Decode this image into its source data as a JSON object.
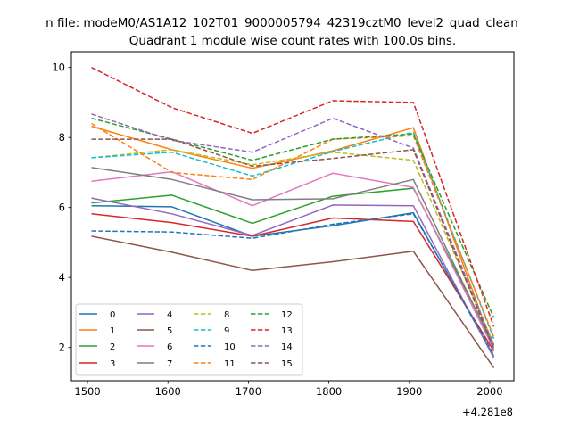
{
  "chart_data": {
    "type": "line",
    "suptitle": "n file: modeM0/AS1A12_102T01_9000005794_42319cztM0_level2_quad_clean",
    "title": "Quadrant 1 module wise count rates with 100.0s bins.",
    "xlabel": "",
    "ylabel": "",
    "x": [
      1505,
      1605,
      1705,
      1805,
      1905,
      2005
    ],
    "xticks": [
      1500,
      1600,
      1700,
      1800,
      1900,
      2000
    ],
    "xtick_labels": [
      "1500",
      "1600",
      "1700",
      "1800",
      "1900",
      "2000"
    ],
    "x_offset_label": "+4.281e8",
    "xlim": [
      1480,
      2030
    ],
    "yticks": [
      2,
      4,
      6,
      8,
      10
    ],
    "ytick_labels": [
      "2",
      "4",
      "6",
      "8",
      "10"
    ],
    "ylim": [
      1.05,
      10.45
    ],
    "grid": false,
    "legend_position": "lower-left",
    "series": [
      {
        "name": "0",
        "color": "#1f77b4",
        "style": "solid",
        "values": [
          6.05,
          6.02,
          5.18,
          5.48,
          5.85,
          1.75
        ]
      },
      {
        "name": "1",
        "color": "#ff7f0e",
        "style": "solid",
        "values": [
          8.32,
          7.65,
          7.12,
          7.62,
          8.28,
          1.95
        ]
      },
      {
        "name": "2",
        "color": "#2ca02c",
        "style": "solid",
        "values": [
          6.13,
          6.35,
          5.55,
          6.32,
          6.55,
          2.08
        ]
      },
      {
        "name": "3",
        "color": "#d62728",
        "style": "solid",
        "values": [
          5.82,
          5.57,
          5.18,
          5.7,
          5.6,
          1.9
        ]
      },
      {
        "name": "4",
        "color": "#9467bd",
        "style": "solid",
        "values": [
          6.27,
          5.82,
          5.2,
          6.07,
          6.05,
          1.7
        ]
      },
      {
        "name": "5",
        "color": "#8c564b",
        "style": "solid",
        "values": [
          5.18,
          4.72,
          4.2,
          4.45,
          4.75,
          1.42
        ]
      },
      {
        "name": "6",
        "color": "#e377c2",
        "style": "solid",
        "values": [
          6.75,
          7.02,
          6.05,
          6.98,
          6.57,
          1.95
        ]
      },
      {
        "name": "7",
        "color": "#7f7f7f",
        "style": "solid",
        "values": [
          7.14,
          6.8,
          6.22,
          6.25,
          6.8,
          2.0
        ]
      },
      {
        "name": "8",
        "color": "#bcbd22",
        "style": "dashed",
        "values": [
          7.42,
          7.65,
          7.22,
          7.58,
          7.35,
          2.1
        ]
      },
      {
        "name": "9",
        "color": "#17becf",
        "style": "dashed",
        "values": [
          7.42,
          7.58,
          6.9,
          7.6,
          8.15,
          2.25
        ]
      },
      {
        "name": "10",
        "color": "#1f77b4",
        "style": "dashed",
        "values": [
          5.33,
          5.3,
          5.12,
          5.52,
          5.82,
          1.8
        ]
      },
      {
        "name": "11",
        "color": "#ff7f0e",
        "style": "dashed",
        "values": [
          8.4,
          7.0,
          6.8,
          7.95,
          8.05,
          2.3
        ]
      },
      {
        "name": "12",
        "color": "#2ca02c",
        "style": "dashed",
        "values": [
          8.55,
          7.95,
          7.35,
          7.95,
          8.1,
          2.85
        ]
      },
      {
        "name": "13",
        "color": "#d62728",
        "style": "dashed",
        "values": [
          10.0,
          8.85,
          8.12,
          9.05,
          9.0,
          2.6
        ]
      },
      {
        "name": "14",
        "color": "#9467bd",
        "style": "dashed",
        "values": [
          8.67,
          7.92,
          7.58,
          8.55,
          7.7,
          2.05
        ]
      },
      {
        "name": "15",
        "color": "#8c564b",
        "style": "dashed",
        "values": [
          7.95,
          7.95,
          7.18,
          7.4,
          7.65,
          1.95
        ]
      }
    ]
  }
}
